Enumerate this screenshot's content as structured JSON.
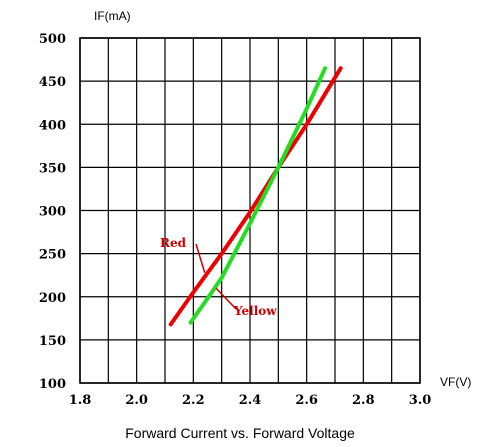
{
  "chart_data": {
    "type": "line",
    "title": "Forward Current vs. Forward Voltage",
    "xlabel": "VF(V)",
    "ylabel": "IF(mA)",
    "xlim": [
      1.8,
      3.0
    ],
    "ylim": [
      100,
      500
    ],
    "xticks": [
      1.8,
      2.0,
      2.2,
      2.4,
      2.6,
      2.8,
      3.0
    ],
    "xtick_labels": [
      "1.8",
      "2.0",
      "2.2",
      "2.4",
      "2.6",
      "2.8",
      "3.0"
    ],
    "yticks": [
      100,
      150,
      200,
      250,
      300,
      350,
      400,
      450,
      500
    ],
    "ytick_labels": [
      "100",
      "150",
      "200",
      "250",
      "300",
      "350",
      "400",
      "450",
      "500"
    ],
    "grid": true,
    "series": [
      {
        "name": "Red",
        "color": "#ee0000",
        "x": [
          2.12,
          2.2,
          2.3,
          2.4,
          2.5,
          2.6,
          2.72
        ],
        "y": [
          168,
          205,
          250,
          298,
          350,
          400,
          465
        ]
      },
      {
        "name": "Yellow",
        "color": "#22dd22",
        "x": [
          2.19,
          2.25,
          2.3,
          2.4,
          2.5,
          2.6,
          2.665
        ],
        "y": [
          170,
          198,
          222,
          285,
          350,
          418,
          465
        ]
      }
    ],
    "annotations": [
      {
        "text": "Red",
        "series": "Red"
      },
      {
        "text": "Yellow",
        "series": "Yellow"
      }
    ]
  }
}
